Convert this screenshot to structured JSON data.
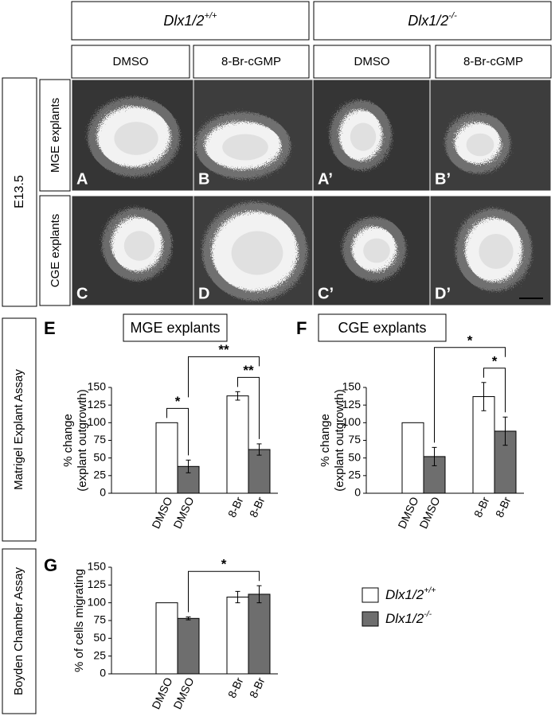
{
  "header": {
    "genotypes": [
      {
        "name": "Dlx1/2",
        "sup": "+/+"
      },
      {
        "name": "Dlx1/2",
        "sup": "-/-"
      }
    ],
    "conditions": [
      "DMSO",
      "8-Br-cGMP",
      "DMSO",
      "8-Br-cGMP"
    ],
    "age": "E13.5",
    "rows": [
      "MGE explants",
      "CGE explants"
    ],
    "panel_letters": [
      [
        "A",
        "B",
        "A’",
        "B’"
      ],
      [
        "C",
        "D",
        "C’",
        "D’"
      ]
    ]
  },
  "side_labels": [
    "Matrigel Explant Assay",
    "Boyden Chamber Assay"
  ],
  "legend": [
    {
      "name": "Dlx1/2",
      "sup": "+/+",
      "color": "#ffffff"
    },
    {
      "name": "Dlx1/2",
      "sup": "-/-",
      "color": "#6e6e6e"
    }
  ],
  "chart_data": [
    {
      "type": "bar",
      "panel": "E",
      "title": "MGE explants",
      "ylabel": [
        "% change",
        "(explant outgrowth)"
      ],
      "categories": [
        "DMSO",
        "8-Br"
      ],
      "series": [
        {
          "color": "#ffffff",
          "values": [
            100,
            138
          ],
          "errors": [
            null,
            6
          ]
        },
        {
          "color": "#6e6e6e",
          "values": [
            38,
            62
          ],
          "errors": [
            9,
            8
          ]
        }
      ],
      "ylim": [
        0,
        150
      ],
      "yticks": [
        0,
        25,
        50,
        75,
        100,
        125,
        150
      ],
      "annotations": [
        {
          "label": "*",
          "bars": [
            [
              0,
              0
            ],
            [
              1,
              0
            ]
          ]
        },
        {
          "label": "**",
          "bars": [
            [
              0,
              1
            ],
            [
              1,
              1
            ]
          ]
        },
        {
          "label": "**",
          "bars": [
            [
              1,
              0
            ],
            [
              1,
              1
            ]
          ]
        }
      ]
    },
    {
      "type": "bar",
      "panel": "F",
      "title": "CGE explants",
      "ylabel": [
        "% change",
        "(explant outgrowth)"
      ],
      "categories": [
        "DMSO",
        "8-Br"
      ],
      "series": [
        {
          "color": "#ffffff",
          "values": [
            100,
            137
          ],
          "errors": [
            null,
            20
          ]
        },
        {
          "color": "#6e6e6e",
          "values": [
            52,
            88
          ],
          "errors": [
            13,
            20
          ]
        }
      ],
      "ylim": [
        0,
        150
      ],
      "yticks": [
        0,
        25,
        50,
        75,
        100,
        125,
        150
      ],
      "annotations": [
        {
          "label": "*",
          "bars": [
            [
              0,
              1
            ],
            [
              1,
              1
            ]
          ]
        },
        {
          "label": "*",
          "bars": [
            [
              1,
              0
            ],
            [
              1,
              1
            ]
          ]
        }
      ]
    },
    {
      "type": "bar",
      "panel": "G",
      "ylabel": [
        "% of cells migrating"
      ],
      "categories": [
        "DMSO",
        "8-Br"
      ],
      "series": [
        {
          "color": "#ffffff",
          "values": [
            100,
            108
          ],
          "errors": [
            null,
            8
          ]
        },
        {
          "color": "#6e6e6e",
          "values": [
            78,
            112
          ],
          "errors": [
            2,
            12
          ]
        }
      ],
      "ylim": [
        0,
        150
      ],
      "yticks": [
        0,
        25,
        50,
        75,
        100,
        125,
        150
      ],
      "annotations": [
        {
          "label": "*",
          "bars": [
            [
              1,
              0
            ],
            [
              1,
              1
            ]
          ]
        }
      ]
    }
  ]
}
